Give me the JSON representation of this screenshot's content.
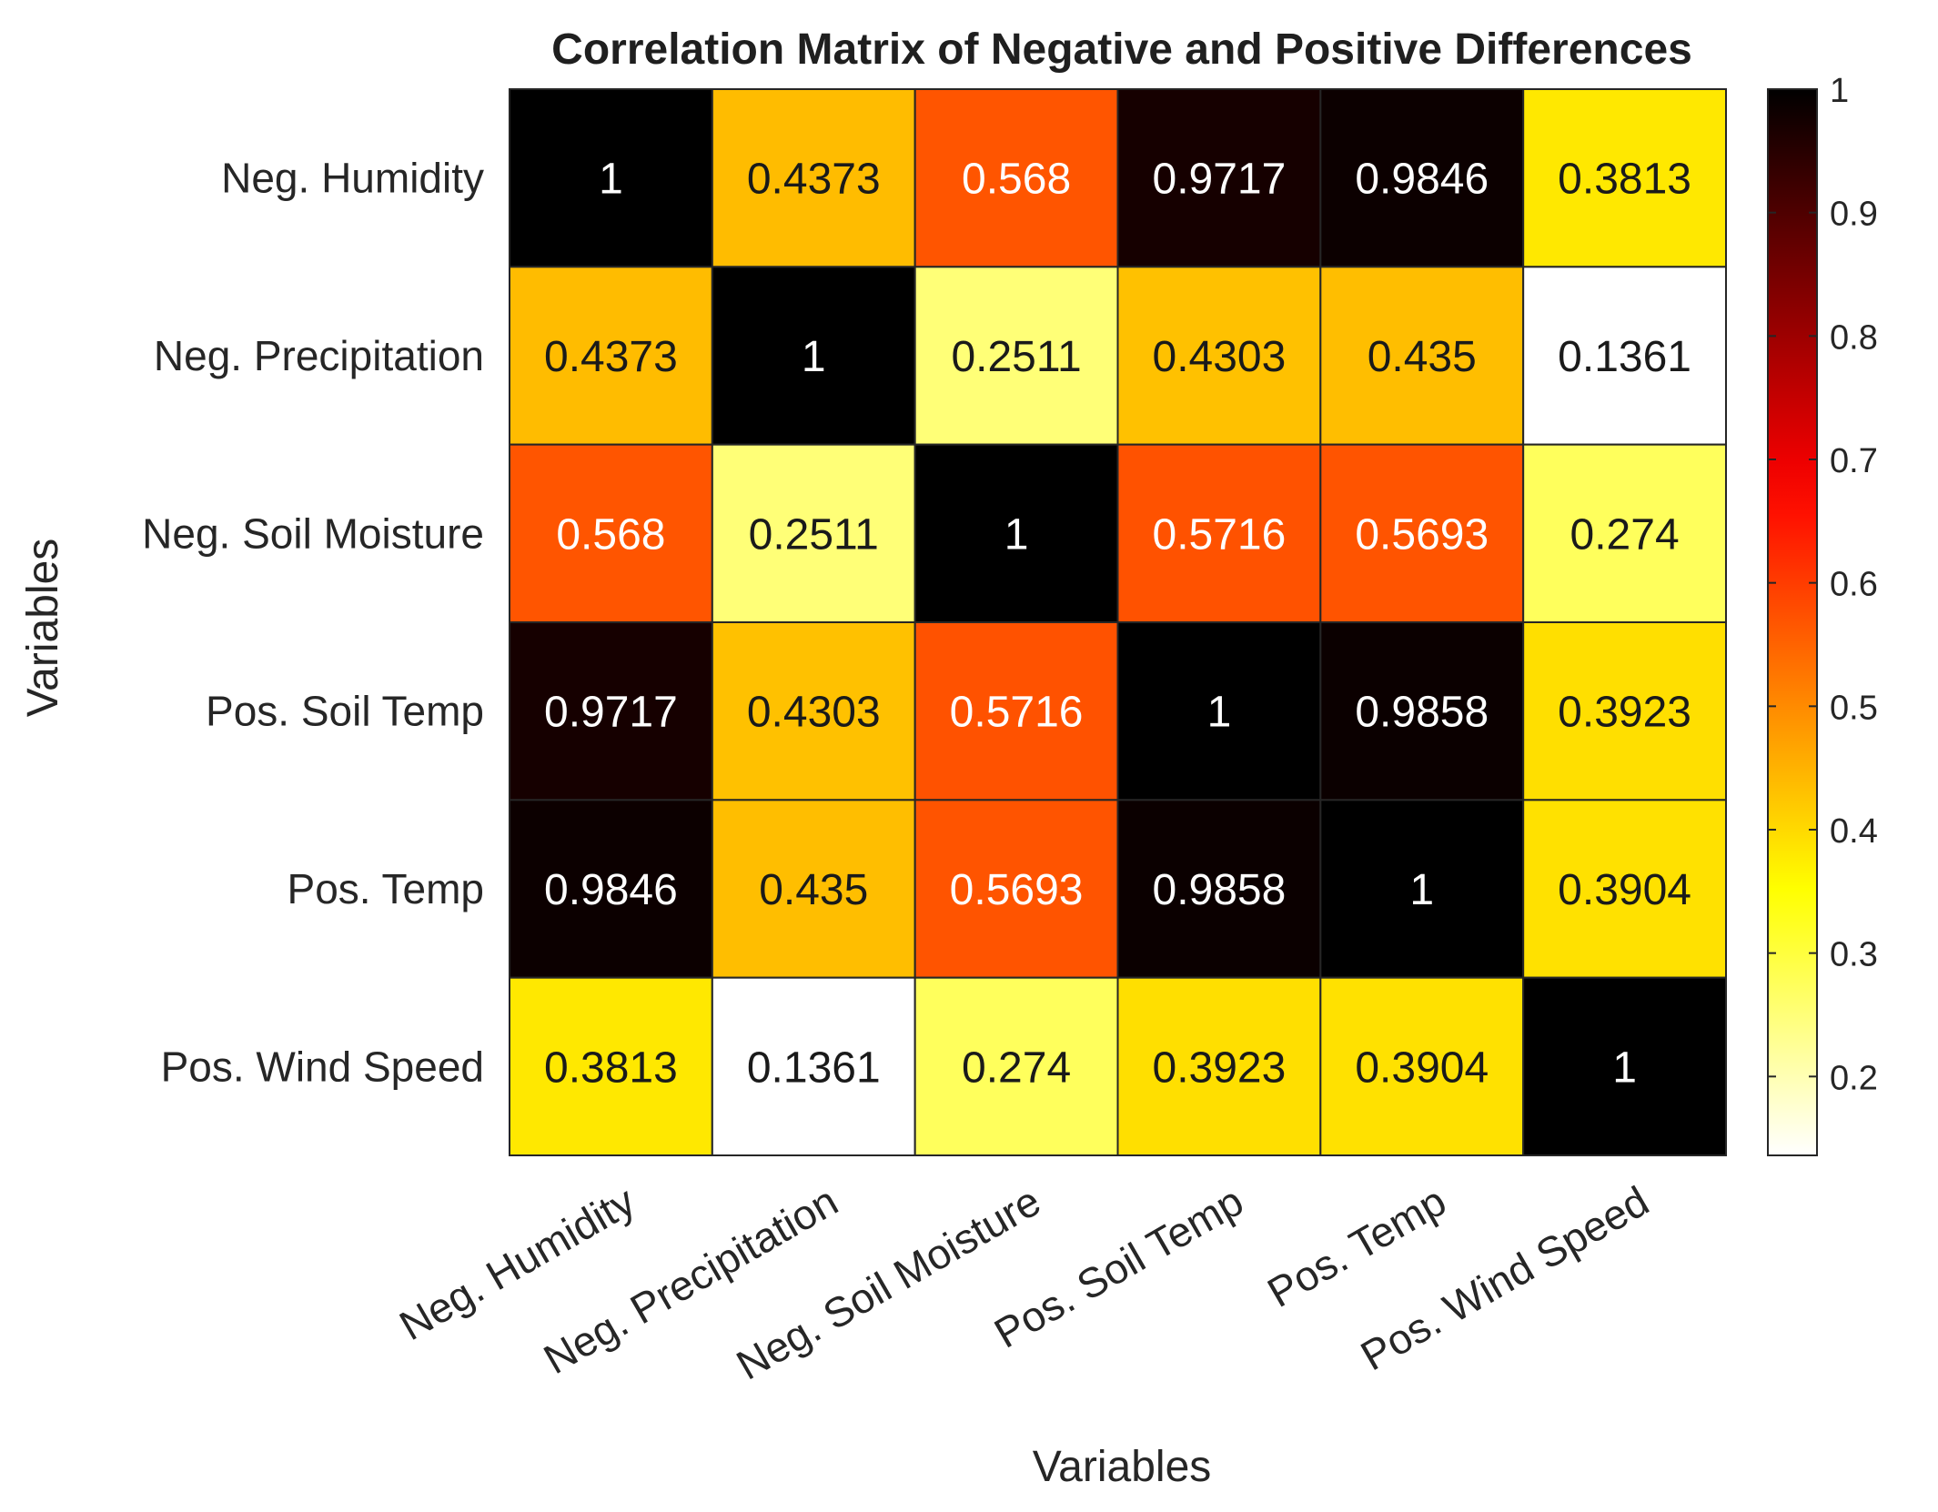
{
  "chart_data": {
    "type": "heatmap",
    "title": "Correlation Matrix of Negative and Positive Differences",
    "xlabel": "Variables",
    "ylabel": "Variables",
    "variables": [
      "Neg. Humidity",
      "Neg. Precipitation",
      "Neg. Soil Moisture",
      "Pos. Soil Temp",
      "Pos. Temp",
      "Pos. Wind Speed"
    ],
    "values": [
      [
        1,
        0.4373,
        0.568,
        0.9717,
        0.9846,
        0.3813
      ],
      [
        0.4373,
        1,
        0.2511,
        0.4303,
        0.435,
        0.1361
      ],
      [
        0.568,
        0.2511,
        1,
        0.5716,
        0.5693,
        0.274
      ],
      [
        0.9717,
        0.4303,
        0.5716,
        1,
        0.9858,
        0.3923
      ],
      [
        0.9846,
        0.435,
        0.5693,
        0.9858,
        1,
        0.3904
      ],
      [
        0.3813,
        0.1361,
        0.274,
        0.3923,
        0.3904,
        1
      ]
    ],
    "cell_labels": [
      [
        "1",
        "0.4373",
        "0.568",
        "0.9717",
        "0.9846",
        "0.3813"
      ],
      [
        "0.4373",
        "1",
        "0.2511",
        "0.4303",
        "0.435",
        "0.1361"
      ],
      [
        "0.568",
        "0.2511",
        "1",
        "0.5716",
        "0.5693",
        "0.274"
      ],
      [
        "0.9717",
        "0.4303",
        "0.5716",
        "1",
        "0.9858",
        "0.3923"
      ],
      [
        "0.9846",
        "0.435",
        "0.5693",
        "0.9858",
        "1",
        "0.3904"
      ],
      [
        "0.3813",
        "0.1361",
        "0.274",
        "0.3923",
        "0.3904",
        "1"
      ]
    ],
    "colormap": "hot (reversed)",
    "colorbar": {
      "range": [
        0.1361,
        1
      ],
      "ticks": [
        0.2,
        0.3,
        0.4,
        0.5,
        0.6,
        0.7,
        0.8,
        0.9,
        1
      ],
      "tick_labels": [
        "0.2",
        "0.3",
        "0.4",
        "0.5",
        "0.6",
        "0.7",
        "0.8",
        "0.9",
        "1"
      ]
    },
    "grid_color": "#262626"
  }
}
